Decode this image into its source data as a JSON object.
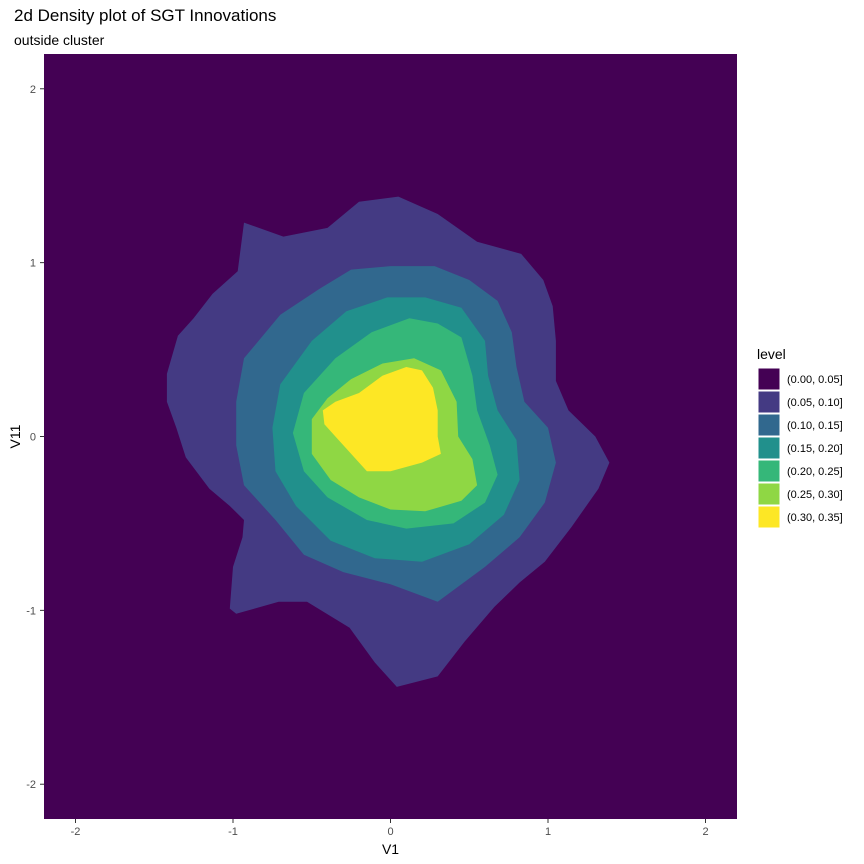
{
  "chart_data": {
    "type": "density2d",
    "title": "2d Density plot of SGT Innovations",
    "subtitle": "outside cluster",
    "xlabel": "V1",
    "ylabel": "V11",
    "xlim": [
      -2.2,
      2.2
    ],
    "ylim": [
      -2.2,
      2.2
    ],
    "x_ticks": [
      "-2",
      "-1",
      "0",
      "1",
      "2"
    ],
    "y_ticks": [
      "-2",
      "-1",
      "0",
      "1",
      "2"
    ],
    "grid": false,
    "legend": {
      "title": "level",
      "position": "right",
      "entries": [
        {
          "label": "(0.00, 0.05]",
          "color": "#440154"
        },
        {
          "label": "(0.05, 0.10]",
          "color": "#443A83"
        },
        {
          "label": "(0.10, 0.15]",
          "color": "#31688E"
        },
        {
          "label": "(0.15, 0.20]",
          "color": "#21908C"
        },
        {
          "label": "(0.20, 0.25]",
          "color": "#35B779"
        },
        {
          "label": "(0.25, 0.30]",
          "color": "#8FD744"
        },
        {
          "label": "(0.30, 0.35]",
          "color": "#FDE725"
        }
      ]
    },
    "contours": [
      {
        "level": "(0.05, 0.10]",
        "points": [
          [
            -0.93,
            1.23
          ],
          [
            -0.68,
            1.15
          ],
          [
            -0.4,
            1.2
          ],
          [
            -0.2,
            1.35
          ],
          [
            0.05,
            1.38
          ],
          [
            0.3,
            1.28
          ],
          [
            0.55,
            1.12
          ],
          [
            0.83,
            1.05
          ],
          [
            0.97,
            0.9
          ],
          [
            1.03,
            0.75
          ],
          [
            1.05,
            0.55
          ],
          [
            1.05,
            0.32
          ],
          [
            1.13,
            0.15
          ],
          [
            1.3,
            0.0
          ],
          [
            1.39,
            -0.15
          ],
          [
            1.32,
            -0.3
          ],
          [
            1.15,
            -0.52
          ],
          [
            0.98,
            -0.72
          ],
          [
            0.82,
            -0.84
          ],
          [
            0.66,
            -0.98
          ],
          [
            0.47,
            -1.18
          ],
          [
            0.3,
            -1.38
          ],
          [
            0.04,
            -1.44
          ],
          [
            -0.1,
            -1.3
          ],
          [
            -0.26,
            -1.1
          ],
          [
            -0.53,
            -0.95
          ],
          [
            -0.71,
            -0.95
          ],
          [
            -0.98,
            -1.02
          ],
          [
            -1.02,
            -0.99
          ],
          [
            -1.0,
            -0.75
          ],
          [
            -0.94,
            -0.58
          ],
          [
            -0.93,
            -0.48
          ],
          [
            -1.02,
            -0.4
          ],
          [
            -1.15,
            -0.3
          ],
          [
            -1.3,
            -0.12
          ],
          [
            -1.36,
            0.05
          ],
          [
            -1.42,
            0.2
          ],
          [
            -1.42,
            0.36
          ],
          [
            -1.35,
            0.58
          ],
          [
            -1.25,
            0.68
          ],
          [
            -1.13,
            0.82
          ],
          [
            -0.97,
            0.95
          ]
        ]
      },
      {
        "level": "(0.10, 0.15]",
        "points": [
          [
            -0.7,
            0.7
          ],
          [
            -0.45,
            0.85
          ],
          [
            -0.25,
            0.96
          ],
          [
            0.0,
            0.98
          ],
          [
            0.28,
            0.98
          ],
          [
            0.5,
            0.9
          ],
          [
            0.68,
            0.78
          ],
          [
            0.77,
            0.6
          ],
          [
            0.8,
            0.4
          ],
          [
            0.85,
            0.2
          ],
          [
            1.0,
            0.05
          ],
          [
            1.05,
            -0.15
          ],
          [
            0.98,
            -0.38
          ],
          [
            0.82,
            -0.58
          ],
          [
            0.6,
            -0.75
          ],
          [
            0.3,
            -0.95
          ],
          [
            0.0,
            -0.85
          ],
          [
            -0.3,
            -0.78
          ],
          [
            -0.55,
            -0.68
          ],
          [
            -0.73,
            -0.48
          ],
          [
            -0.93,
            -0.28
          ],
          [
            -0.98,
            -0.05
          ],
          [
            -0.98,
            0.2
          ],
          [
            -0.93,
            0.45
          ]
        ]
      },
      {
        "level": "(0.15, 0.20]",
        "points": [
          [
            -0.5,
            0.55
          ],
          [
            -0.28,
            0.72
          ],
          [
            -0.02,
            0.8
          ],
          [
            0.22,
            0.8
          ],
          [
            0.45,
            0.74
          ],
          [
            0.6,
            0.55
          ],
          [
            0.62,
            0.35
          ],
          [
            0.68,
            0.15
          ],
          [
            0.8,
            -0.02
          ],
          [
            0.82,
            -0.25
          ],
          [
            0.72,
            -0.45
          ],
          [
            0.5,
            -0.62
          ],
          [
            0.2,
            -0.72
          ],
          [
            -0.1,
            -0.7
          ],
          [
            -0.38,
            -0.6
          ],
          [
            -0.6,
            -0.4
          ],
          [
            -0.73,
            -0.2
          ],
          [
            -0.75,
            0.05
          ],
          [
            -0.7,
            0.3
          ]
        ]
      },
      {
        "level": "(0.20, 0.25]",
        "points": [
          [
            -0.35,
            0.45
          ],
          [
            -0.12,
            0.6
          ],
          [
            0.12,
            0.68
          ],
          [
            0.3,
            0.65
          ],
          [
            0.45,
            0.57
          ],
          [
            0.52,
            0.35
          ],
          [
            0.55,
            0.15
          ],
          [
            0.63,
            -0.05
          ],
          [
            0.68,
            -0.22
          ],
          [
            0.6,
            -0.38
          ],
          [
            0.4,
            -0.5
          ],
          [
            0.1,
            -0.53
          ],
          [
            -0.15,
            -0.48
          ],
          [
            -0.4,
            -0.35
          ],
          [
            -0.55,
            -0.2
          ],
          [
            -0.62,
            0.02
          ],
          [
            -0.55,
            0.25
          ]
        ]
      },
      {
        "level": "(0.25, 0.30]",
        "points": [
          [
            -0.25,
            0.33
          ],
          [
            -0.05,
            0.42
          ],
          [
            0.15,
            0.45
          ],
          [
            0.32,
            0.38
          ],
          [
            0.42,
            0.2
          ],
          [
            0.43,
            0.0
          ],
          [
            0.52,
            -0.13
          ],
          [
            0.55,
            -0.28
          ],
          [
            0.45,
            -0.37
          ],
          [
            0.22,
            -0.43
          ],
          [
            0.0,
            -0.42
          ],
          [
            -0.2,
            -0.35
          ],
          [
            -0.38,
            -0.25
          ],
          [
            -0.5,
            -0.1
          ],
          [
            -0.5,
            0.1
          ],
          [
            -0.4,
            0.22
          ]
        ]
      },
      {
        "level": "(0.30, 0.35]",
        "points": [
          [
            -0.2,
            0.25
          ],
          [
            -0.05,
            0.35
          ],
          [
            0.1,
            0.4
          ],
          [
            0.2,
            0.38
          ],
          [
            0.27,
            0.28
          ],
          [
            0.3,
            0.15
          ],
          [
            0.3,
            0.0
          ],
          [
            0.32,
            -0.1
          ],
          [
            0.2,
            -0.15
          ],
          [
            0.0,
            -0.2
          ],
          [
            -0.15,
            -0.2
          ],
          [
            -0.27,
            -0.08
          ],
          [
            -0.35,
            0.0
          ],
          [
            -0.42,
            0.07
          ],
          [
            -0.43,
            0.15
          ],
          [
            -0.35,
            0.2
          ]
        ]
      }
    ]
  }
}
